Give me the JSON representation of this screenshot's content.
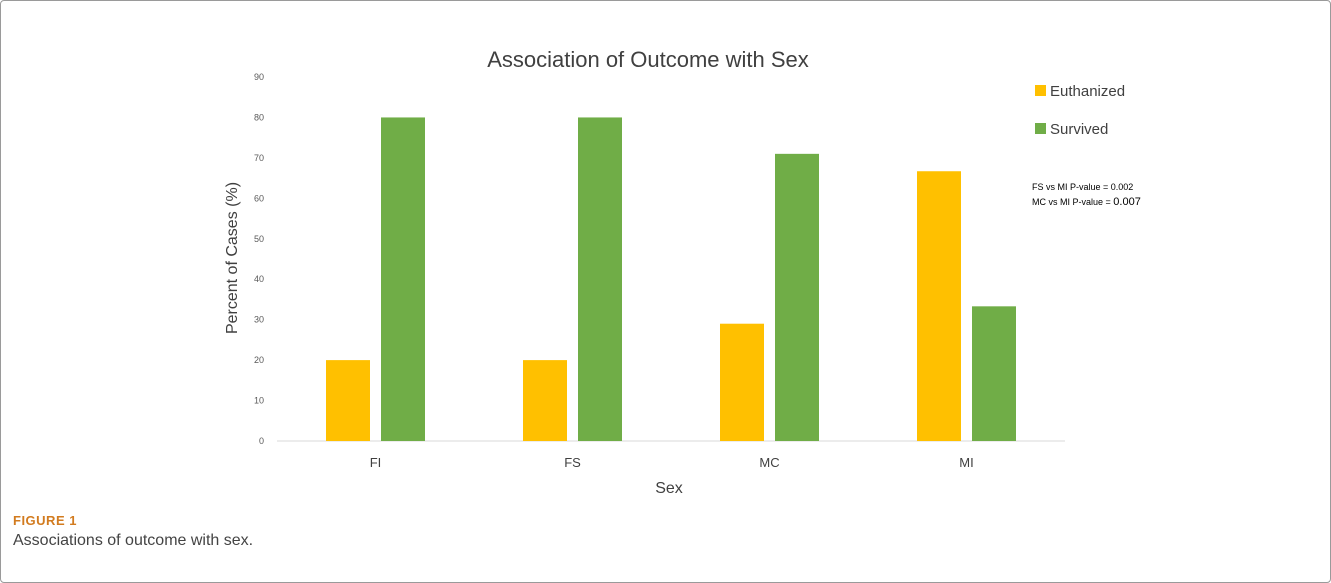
{
  "chart_data": {
    "type": "bar",
    "title": "Association of Outcome with Sex",
    "xlabel": "Sex",
    "ylabel": "Percent of Cases (%)",
    "categories": [
      "FI",
      "FS",
      "MC",
      "MI"
    ],
    "series": [
      {
        "name": "Euthanized",
        "color": "#ffc000",
        "values": [
          20,
          20,
          29,
          66.7
        ]
      },
      {
        "name": "Survived",
        "color": "#70ad47",
        "values": [
          80,
          80,
          71,
          33.3
        ]
      }
    ],
    "ylim": [
      0,
      90
    ],
    "yticks": [
      0,
      10,
      20,
      30,
      40,
      50,
      60,
      70,
      80,
      90
    ],
    "grid": false,
    "legend_position": "top-right",
    "annotations": [
      {
        "label": "FS vs MI P-value = ",
        "value": "0.002"
      },
      {
        "label": "MC vs MI P-value = ",
        "value": "0.007"
      }
    ]
  },
  "figure": {
    "label": "FIGURE 1",
    "caption": "Associations of outcome with sex."
  }
}
